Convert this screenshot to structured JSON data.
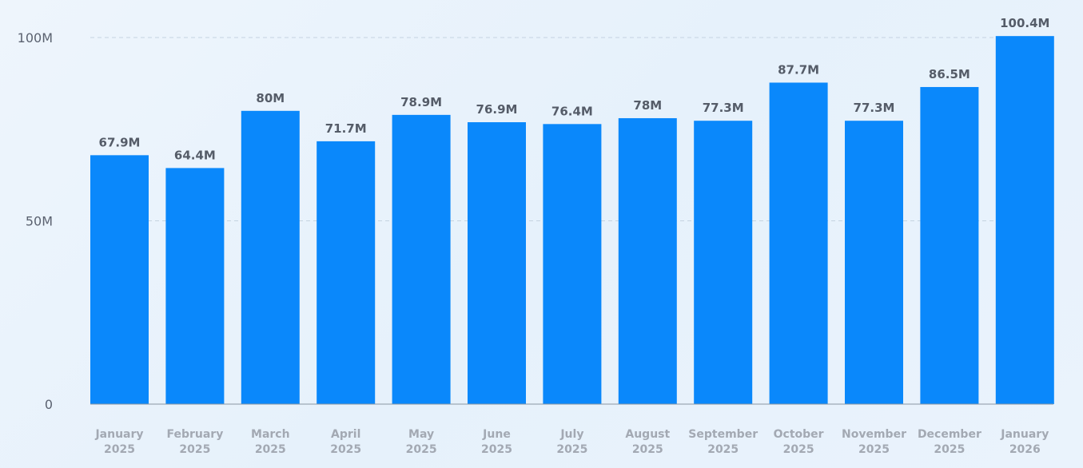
{
  "chart_data": {
    "type": "bar",
    "title": "",
    "xlabel": "",
    "ylabel": "",
    "ylim": [
      0,
      100
    ],
    "unit": "M",
    "grid": true,
    "categories": [
      [
        "January",
        "2025"
      ],
      [
        "February",
        "2025"
      ],
      [
        "March",
        "2025"
      ],
      [
        "April",
        "2025"
      ],
      [
        "May",
        "2025"
      ],
      [
        "June",
        "2025"
      ],
      [
        "July",
        "2025"
      ],
      [
        "August",
        "2025"
      ],
      [
        "September",
        "2025"
      ],
      [
        "October",
        "2025"
      ],
      [
        "November",
        "2025"
      ],
      [
        "December",
        "2025"
      ],
      [
        "January",
        "2026"
      ]
    ],
    "values": [
      67.9,
      64.4,
      80,
      71.7,
      78.9,
      76.9,
      76.4,
      78,
      77.3,
      87.7,
      77.3,
      86.5,
      100.4
    ],
    "data_labels": [
      "67.9M",
      "64.4M",
      "80M",
      "71.7M",
      "78.9M",
      "76.9M",
      "76.4M",
      "78M",
      "77.3M",
      "87.7M",
      "77.3M",
      "86.5M",
      "100.4M"
    ],
    "yticks": [
      {
        "value": 0,
        "label": "0"
      },
      {
        "value": 50,
        "label": "50M"
      },
      {
        "value": 100,
        "label": "100M"
      }
    ],
    "colors": {
      "bar": "#0a88fb",
      "grid": "#c5d3e0",
      "axis": "#8a96a3"
    }
  }
}
